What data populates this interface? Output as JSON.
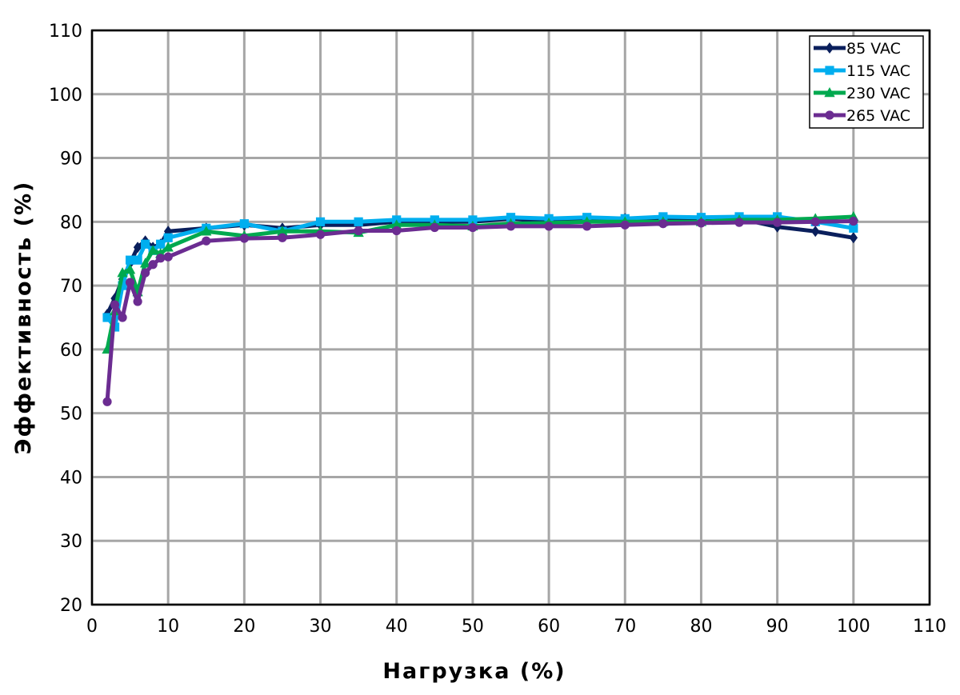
{
  "chart_data": {
    "type": "line",
    "xlabel": "Нагрузка (%)",
    "ylabel": "Эффективность (%)",
    "xlim": [
      0,
      110
    ],
    "ylim": [
      20,
      110
    ],
    "x_ticks": [
      0,
      10,
      20,
      30,
      40,
      50,
      60,
      70,
      80,
      90,
      100,
      110
    ],
    "y_ticks": [
      20,
      30,
      40,
      50,
      60,
      70,
      80,
      90,
      100,
      110
    ],
    "grid": true,
    "legend_position": "top-right",
    "series": [
      {
        "name": "85 VAC",
        "color": "#0a1f5c",
        "marker": "diamond",
        "points": [
          [
            2,
            65.5
          ],
          [
            3,
            68
          ],
          [
            4,
            71
          ],
          [
            5,
            73.5
          ],
          [
            6,
            76
          ],
          [
            7,
            77
          ],
          [
            8,
            76
          ],
          [
            9,
            76.5
          ],
          [
            10,
            78.5
          ],
          [
            15,
            79
          ],
          [
            20,
            79.5
          ],
          [
            25,
            79
          ],
          [
            30,
            79.5
          ],
          [
            35,
            79.5
          ],
          [
            40,
            80
          ],
          [
            45,
            80
          ],
          [
            50,
            80
          ],
          [
            55,
            80.5
          ],
          [
            60,
            80
          ],
          [
            65,
            80.5
          ],
          [
            70,
            80.5
          ],
          [
            75,
            80.5
          ],
          [
            80,
            80.5
          ],
          [
            85,
            80.5
          ],
          [
            90,
            79.2
          ],
          [
            95,
            78.5
          ],
          [
            100,
            77.5
          ]
        ]
      },
      {
        "name": "115 VAC",
        "color": "#00aeef",
        "marker": "square",
        "points": [
          [
            2,
            65
          ],
          [
            3,
            63.5
          ],
          [
            4,
            70
          ],
          [
            5,
            74
          ],
          [
            6,
            74
          ],
          [
            7,
            76.5
          ],
          [
            8,
            75.5
          ],
          [
            9,
            76.5
          ],
          [
            10,
            77.5
          ],
          [
            15,
            79
          ],
          [
            20,
            79.7
          ],
          [
            25,
            78.5
          ],
          [
            30,
            80
          ],
          [
            35,
            80
          ],
          [
            40,
            80.3
          ],
          [
            45,
            80.3
          ],
          [
            50,
            80.3
          ],
          [
            55,
            80.7
          ],
          [
            60,
            80.5
          ],
          [
            65,
            80.7
          ],
          [
            70,
            80.5
          ],
          [
            75,
            80.8
          ],
          [
            80,
            80.7
          ],
          [
            85,
            80.8
          ],
          [
            90,
            80.8
          ],
          [
            95,
            80
          ],
          [
            100,
            79
          ]
        ]
      },
      {
        "name": "230 VAC",
        "color": "#00a94f",
        "marker": "triangle",
        "points": [
          [
            2,
            60
          ],
          [
            3,
            66
          ],
          [
            4,
            72
          ],
          [
            5,
            72.5
          ],
          [
            6,
            69
          ],
          [
            7,
            73.5
          ],
          [
            8,
            75.5
          ],
          [
            9,
            75
          ],
          [
            10,
            76
          ],
          [
            15,
            78.5
          ],
          [
            20,
            77.8
          ],
          [
            25,
            78.5
          ],
          [
            30,
            78.5
          ],
          [
            35,
            78.3
          ],
          [
            40,
            79.5
          ],
          [
            45,
            79.5
          ],
          [
            50,
            79.3
          ],
          [
            55,
            79.7
          ],
          [
            60,
            79.8
          ],
          [
            65,
            80
          ],
          [
            70,
            80
          ],
          [
            75,
            80
          ],
          [
            80,
            80
          ],
          [
            85,
            80.3
          ],
          [
            90,
            80.3
          ],
          [
            95,
            80.5
          ],
          [
            100,
            80.8
          ]
        ]
      },
      {
        "name": "265 VAC",
        "color": "#6b2c91",
        "marker": "circle",
        "points": [
          [
            2,
            51.8
          ],
          [
            3,
            67
          ],
          [
            4,
            65
          ],
          [
            5,
            70.5
          ],
          [
            6,
            67.5
          ],
          [
            7,
            72
          ],
          [
            8,
            73.3
          ],
          [
            9,
            74.3
          ],
          [
            10,
            74.5
          ],
          [
            15,
            77
          ],
          [
            20,
            77.4
          ],
          [
            25,
            77.5
          ],
          [
            30,
            78
          ],
          [
            35,
            78.6
          ],
          [
            40,
            78.6
          ],
          [
            45,
            79.1
          ],
          [
            50,
            79.1
          ],
          [
            55,
            79.3
          ],
          [
            60,
            79.3
          ],
          [
            65,
            79.3
          ],
          [
            70,
            79.5
          ],
          [
            75,
            79.7
          ],
          [
            80,
            79.8
          ],
          [
            85,
            79.9
          ],
          [
            90,
            79.9
          ],
          [
            95,
            80
          ],
          [
            100,
            80.1
          ]
        ]
      }
    ]
  }
}
